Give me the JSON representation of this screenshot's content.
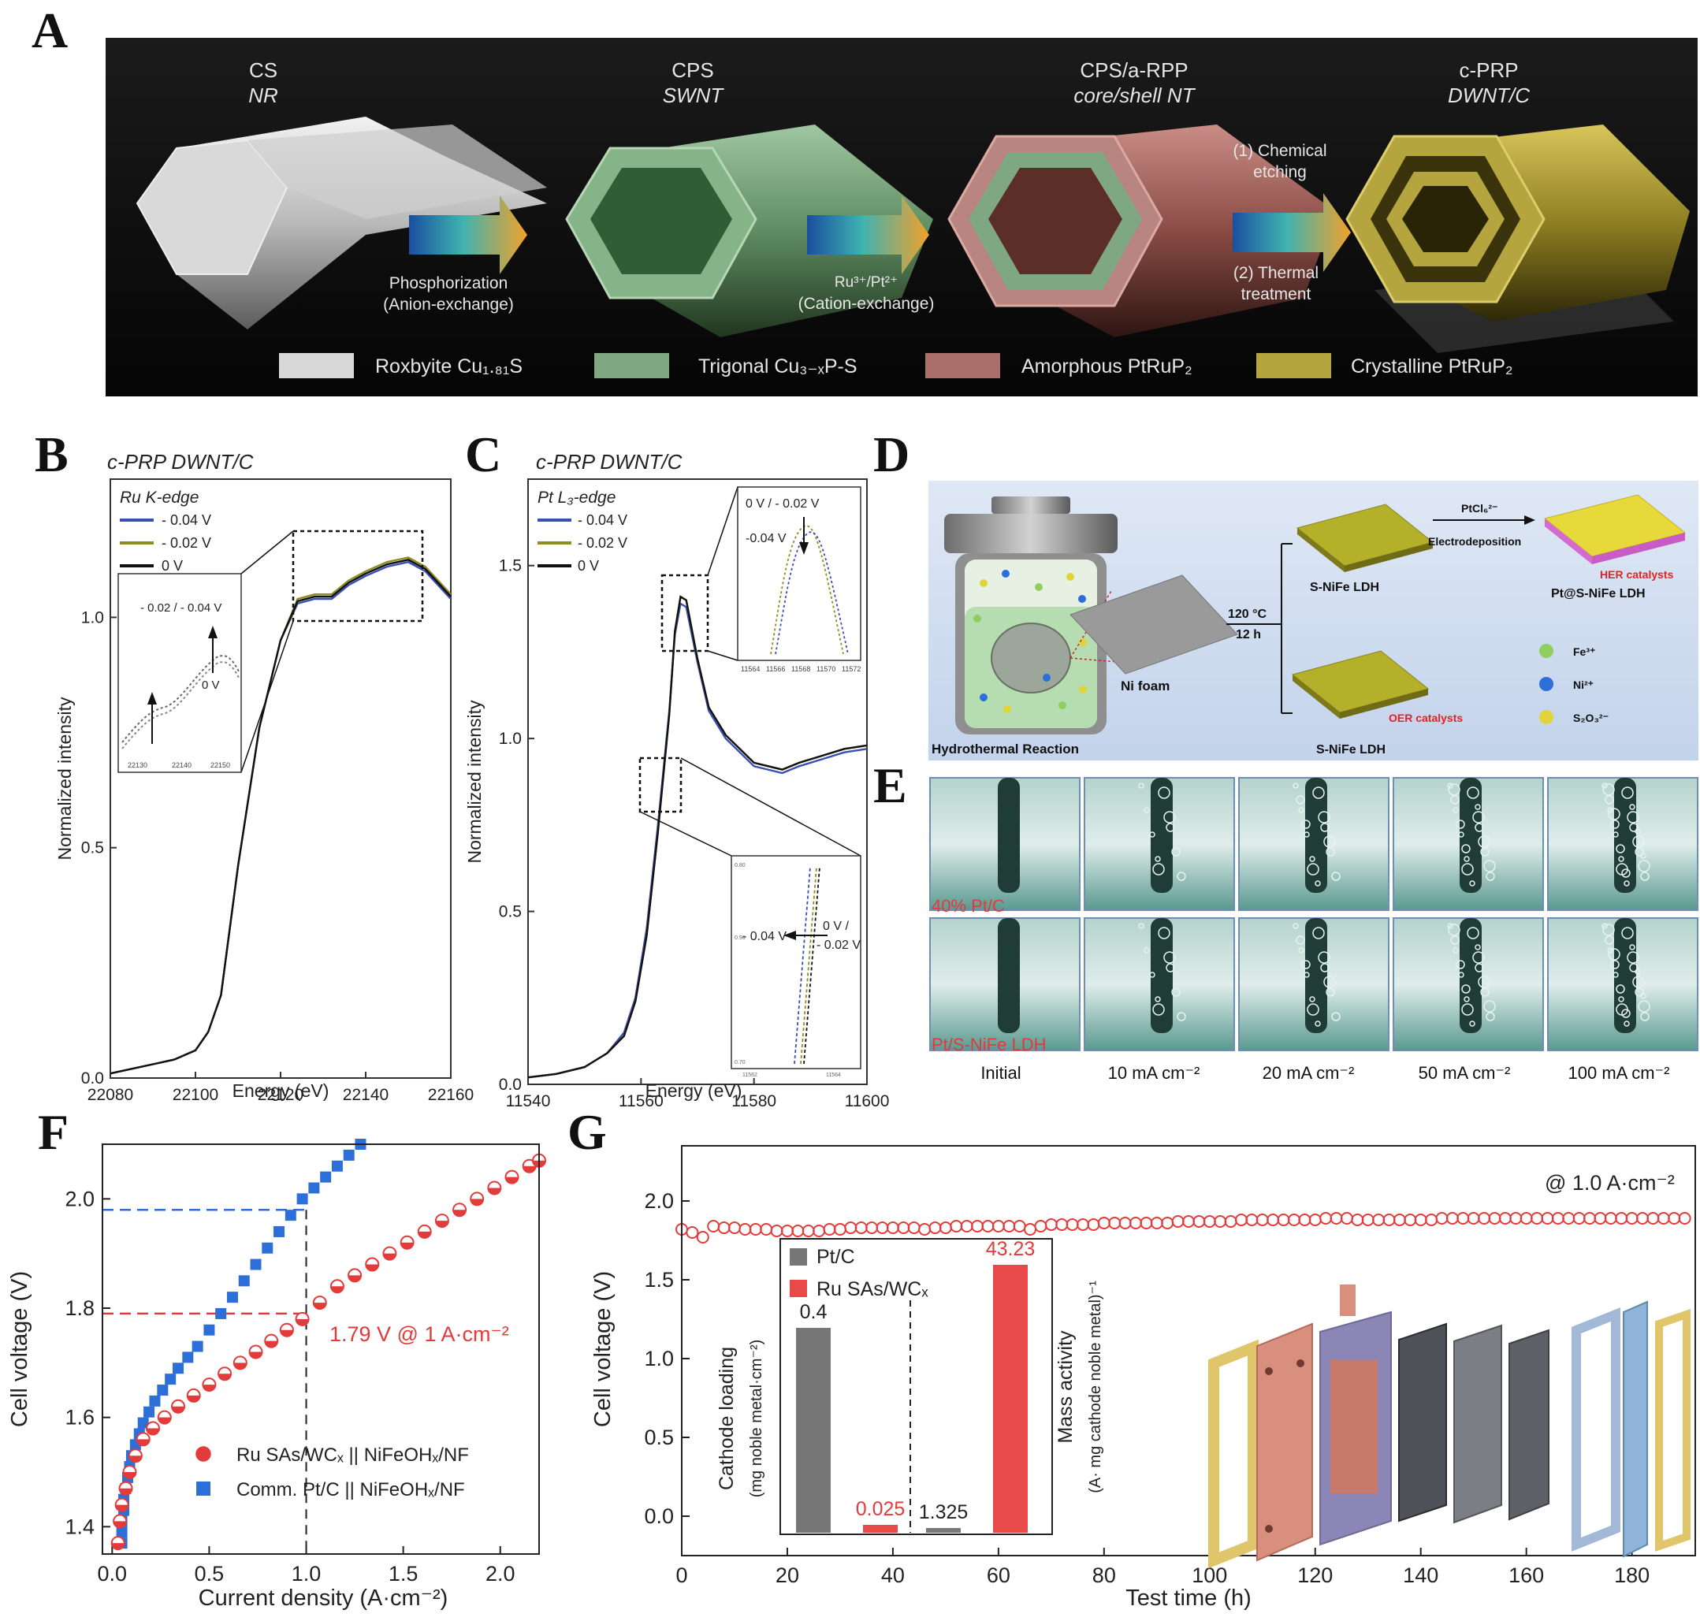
{
  "panel_labels": {
    "A": "A",
    "B": "B",
    "C": "C",
    "D": "D",
    "E": "E",
    "F": "F",
    "G": "G"
  },
  "colors": {
    "ru_red": "#e33a3a",
    "pt_blue": "#2d6fd8",
    "blue_line": "#3a4fb5",
    "olive_line": "#8d8d22",
    "black_line": "#111111",
    "dark_bg": "#0d0d0d",
    "schematic_bg": "#cfdcef",
    "bar_gray": "#777777",
    "bar_red": "#e84a4a"
  },
  "panel_a": {
    "stages": [
      {
        "formula": "CS",
        "form": "NR"
      },
      {
        "formula": "CPS",
        "form": "SWNT"
      },
      {
        "formula": "CPS/a-RPP",
        "form": "core/shell NT"
      },
      {
        "formula": "c-PRP",
        "form": "DWNT/C"
      }
    ],
    "arrow1": {
      "line1": "Phosphorization",
      "line2": "(Anion-exchange)"
    },
    "arrow2": {
      "line1": "Ru³⁺/Pt²⁺",
      "line2": "(Cation-exchange)"
    },
    "arrow3": {
      "top1": "(1) Chemical",
      "top2": "etching",
      "bottom1": "(2) Thermal",
      "bottom2": "treatment"
    },
    "legend": [
      "Roxbyite Cu₁.₈₁S",
      "Trigonal Cu₃₋ₓP-S",
      "Amorphous PtRuP₂",
      "Crystalline PtRuP₂"
    ],
    "legend_colors": [
      "#d8d8d8",
      "#7fa882",
      "#a9706b",
      "#b5a53e"
    ]
  },
  "panel_b": {
    "title": "c-PRP DWNT/C",
    "edge": "Ru K-edge",
    "inset_annotation": "- 0.02 / - 0.04 V",
    "inset_zero": "0 V",
    "inset_ticks": [
      "22130",
      "22140",
      "22150"
    ],
    "chart_data": {
      "type": "line",
      "xlabel": "Energy (eV)",
      "ylabel": "Normalized intensity",
      "xlim": [
        22080,
        22160
      ],
      "ylim": [
        0.0,
        1.3
      ],
      "xticks": [
        "22080",
        "22100",
        "22120",
        "22140",
        "22160"
      ],
      "yticks": [
        "0.0",
        "0.5",
        "1.0"
      ],
      "series": [
        {
          "name": "- 0.04 V",
          "color": "#3a4fb5",
          "x": [
            22080,
            22090,
            22095,
            22100,
            22103,
            22106,
            22110,
            22115,
            22120,
            22124,
            22128,
            22132,
            22136,
            22140,
            22145,
            22150,
            22154,
            22157,
            22160
          ],
          "y": [
            0.01,
            0.03,
            0.04,
            0.06,
            0.1,
            0.18,
            0.46,
            0.76,
            0.95,
            1.03,
            1.04,
            1.04,
            1.07,
            1.09,
            1.11,
            1.12,
            1.1,
            1.07,
            1.04
          ]
        },
        {
          "name": "- 0.02 V",
          "color": "#8d8d22",
          "x": [
            22080,
            22090,
            22095,
            22100,
            22103,
            22106,
            22110,
            22115,
            22120,
            22124,
            22128,
            22132,
            22136,
            22140,
            22145,
            22150,
            22154,
            22157,
            22160
          ],
          "y": [
            0.01,
            0.03,
            0.04,
            0.06,
            0.1,
            0.18,
            0.46,
            0.76,
            0.95,
            1.04,
            1.05,
            1.05,
            1.08,
            1.1,
            1.12,
            1.13,
            1.11,
            1.08,
            1.05
          ]
        },
        {
          "name": "0 V",
          "color": "#111111",
          "x": [
            22080,
            22090,
            22095,
            22100,
            22103,
            22106,
            22110,
            22115,
            22120,
            22124,
            22128,
            22132,
            22136,
            22140,
            22145,
            22150,
            22154,
            22157,
            22160
          ],
          "y": [
            0.01,
            0.03,
            0.04,
            0.06,
            0.1,
            0.18,
            0.46,
            0.76,
            0.95,
            1.035,
            1.045,
            1.045,
            1.075,
            1.095,
            1.115,
            1.125,
            1.105,
            1.075,
            1.045
          ]
        }
      ]
    }
  },
  "panel_c": {
    "title": "c-PRP DWNT/C",
    "edge": "Pt L₃-edge",
    "inset1_annotation_top": "0 V / - 0.02 V",
    "inset1_annotation": "-0.04 V",
    "inset1_ticks": [
      "11564",
      "11566",
      "11568",
      "11570",
      "11572"
    ],
    "inset2_left": "- 0.04 V",
    "inset2_right1": "0 V /",
    "inset2_right2": "- 0.02 V",
    "inset2_yticks": [
      "0.80",
      "0.90",
      "0.70"
    ],
    "inset2_xticks": [
      "11562",
      "11564"
    ],
    "chart_data": {
      "type": "line",
      "xlabel": "Energy (eV)",
      "ylabel": "Normalized intensity",
      "xlim": [
        11540,
        11600
      ],
      "ylim": [
        0.0,
        1.75
      ],
      "xticks": [
        "11540",
        "11560",
        "11580",
        "11600"
      ],
      "yticks": [
        "0.0",
        "0.5",
        "1.0",
        "1.5"
      ],
      "series": [
        {
          "name": "- 0.04 V",
          "color": "#3a4fb5",
          "x": [
            11540,
            11545,
            11550,
            11554,
            11557,
            11559,
            11561,
            11563,
            11565,
            11566,
            11567,
            11568,
            11570,
            11572,
            11575,
            11580,
            11585,
            11588,
            11592,
            11596,
            11600
          ],
          "y": [
            0.02,
            0.03,
            0.05,
            0.09,
            0.15,
            0.25,
            0.45,
            0.75,
            1.08,
            1.3,
            1.39,
            1.38,
            1.22,
            1.08,
            1.0,
            0.92,
            0.9,
            0.92,
            0.94,
            0.96,
            0.97
          ]
        },
        {
          "name": "- 0.02 V",
          "color": "#8d8d22",
          "x": [
            11540,
            11545,
            11550,
            11554,
            11557,
            11559,
            11561,
            11563,
            11565,
            11566,
            11567,
            11568,
            11570,
            11572,
            11575,
            11580,
            11585,
            11588,
            11592,
            11596,
            11600
          ],
          "y": [
            0.02,
            0.03,
            0.05,
            0.09,
            0.14,
            0.24,
            0.43,
            0.73,
            1.07,
            1.31,
            1.41,
            1.4,
            1.23,
            1.09,
            1.01,
            0.93,
            0.91,
            0.93,
            0.95,
            0.97,
            0.98
          ]
        },
        {
          "name": "0 V",
          "color": "#111111",
          "x": [
            11540,
            11545,
            11550,
            11554,
            11557,
            11559,
            11561,
            11563,
            11565,
            11566,
            11567,
            11568,
            11570,
            11572,
            11575,
            11580,
            11585,
            11588,
            11592,
            11596,
            11600
          ],
          "y": [
            0.02,
            0.03,
            0.05,
            0.09,
            0.14,
            0.24,
            0.43,
            0.73,
            1.07,
            1.31,
            1.41,
            1.4,
            1.23,
            1.09,
            1.01,
            0.93,
            0.91,
            0.93,
            0.95,
            0.97,
            0.98
          ]
        }
      ]
    }
  },
  "panel_d": {
    "reactor": "Hydrothermal Reaction",
    "foam": "Ni foam",
    "cond1": "120 °C",
    "cond2": "12 h",
    "top_ldh": "S-NiFe LDH",
    "bottom_ldh": "S-NiFe LDH",
    "oer": "OER catalysts",
    "her": "HER catalysts",
    "pt_product": "Pt@S-NiFe LDH",
    "ptcl": "PtCl₆²⁻",
    "electro": "Electrodeposition",
    "ions": [
      "Fe³⁺",
      "Ni²⁺",
      "S₂O₃²⁻"
    ]
  },
  "panel_e": {
    "row_labels": [
      "40% Pt/C",
      "Pt/S-NiFe LDH"
    ],
    "columns": [
      "Initial",
      "10 mA cm⁻²",
      "20 mA cm⁻²",
      "50 mA cm⁻²",
      "100 mA cm⁻²"
    ]
  },
  "panel_f": {
    "annotation": "1.79 V @ 1 A·cm⁻²",
    "chart_data": {
      "type": "scatter",
      "xlabel": "Current density (A·cm⁻²)",
      "ylabel": "Cell voltage (V)",
      "xlim": [
        -0.05,
        2.2
      ],
      "ylim": [
        1.35,
        2.1
      ],
      "xticks": [
        "0.0",
        "0.5",
        "1.0",
        "1.5",
        "2.0"
      ],
      "yticks": [
        "1.4",
        "1.6",
        "1.8",
        "2.0"
      ],
      "series": [
        {
          "name": "Ru SAs/WCₓ || NiFeOHₓ/NF",
          "color": "#e33a3a",
          "x": [
            0.03,
            0.04,
            0.05,
            0.07,
            0.09,
            0.12,
            0.16,
            0.21,
            0.27,
            0.34,
            0.42,
            0.5,
            0.58,
            0.66,
            0.74,
            0.82,
            0.9,
            0.98,
            1.07,
            1.16,
            1.25,
            1.34,
            1.43,
            1.52,
            1.61,
            1.7,
            1.79,
            1.88,
            1.97,
            2.06,
            2.15,
            2.2
          ],
          "y": [
            1.37,
            1.41,
            1.44,
            1.47,
            1.5,
            1.53,
            1.56,
            1.58,
            1.6,
            1.62,
            1.64,
            1.66,
            1.68,
            1.7,
            1.72,
            1.74,
            1.76,
            1.78,
            1.81,
            1.84,
            1.86,
            1.88,
            1.9,
            1.92,
            1.94,
            1.96,
            1.98,
            2.0,
            2.02,
            2.04,
            2.06,
            2.07
          ]
        },
        {
          "name": "Comm. Pt/C || NiFeOHₓ/NF",
          "color": "#2d6fd8",
          "x": [
            0.05,
            0.05,
            0.05,
            0.06,
            0.06,
            0.07,
            0.08,
            0.09,
            0.1,
            0.12,
            0.14,
            0.16,
            0.19,
            0.22,
            0.26,
            0.3,
            0.34,
            0.39,
            0.44,
            0.5,
            0.56,
            0.62,
            0.68,
            0.74,
            0.8,
            0.86,
            0.92,
            0.98,
            1.04,
            1.1,
            1.16,
            1.22,
            1.28
          ],
          "y": [
            1.37,
            1.39,
            1.41,
            1.43,
            1.45,
            1.47,
            1.49,
            1.51,
            1.53,
            1.55,
            1.57,
            1.59,
            1.61,
            1.63,
            1.65,
            1.67,
            1.69,
            1.71,
            1.73,
            1.76,
            1.79,
            1.82,
            1.85,
            1.88,
            1.91,
            1.94,
            1.97,
            2.0,
            2.02,
            2.04,
            2.06,
            2.08,
            2.1
          ]
        }
      ]
    }
  },
  "panel_g": {
    "annotation": "@  1.0 A·cm⁻²",
    "chart_data": {
      "type": "scatter",
      "xlabel": "Test time (h)",
      "ylabel": "Cell voltage (V)",
      "xlim": [
        0,
        192
      ],
      "ylim": [
        -0.25,
        2.35
      ],
      "xticks": [
        "0",
        "20",
        "40",
        "60",
        "80",
        "100",
        "120",
        "140",
        "160",
        "180"
      ],
      "yticks": [
        "0.0",
        "0.5",
        "1.0",
        "1.5",
        "2.0"
      ],
      "series": [
        {
          "name": "voltage",
          "color": "#e33a3a",
          "x": [
            0,
            2,
            4,
            6,
            8,
            10,
            12,
            14,
            16,
            18,
            20,
            22,
            24,
            26,
            28,
            30,
            32,
            34,
            36,
            38,
            40,
            42,
            44,
            46,
            48,
            50,
            52,
            54,
            56,
            58,
            60,
            62,
            64,
            66,
            68,
            70,
            72,
            74,
            76,
            78,
            80,
            82,
            84,
            86,
            88,
            90,
            92,
            94,
            96,
            98,
            100,
            102,
            104,
            106,
            108,
            110,
            112,
            114,
            116,
            118,
            120,
            122,
            124,
            126,
            128,
            130,
            132,
            134,
            136,
            138,
            140,
            142,
            144,
            146,
            148,
            150,
            152,
            154,
            156,
            158,
            160,
            162,
            164,
            166,
            168,
            170,
            172,
            174,
            176,
            178,
            180,
            182,
            184,
            186,
            188,
            190
          ],
          "y": [
            1.82,
            1.8,
            1.77,
            1.84,
            1.83,
            1.83,
            1.82,
            1.82,
            1.82,
            1.81,
            1.81,
            1.81,
            1.81,
            1.81,
            1.82,
            1.82,
            1.83,
            1.83,
            1.83,
            1.83,
            1.83,
            1.83,
            1.83,
            1.82,
            1.83,
            1.83,
            1.84,
            1.84,
            1.84,
            1.84,
            1.84,
            1.84,
            1.84,
            1.82,
            1.84,
            1.85,
            1.85,
            1.85,
            1.85,
            1.85,
            1.86,
            1.86,
            1.86,
            1.86,
            1.86,
            1.86,
            1.86,
            1.87,
            1.87,
            1.87,
            1.87,
            1.87,
            1.87,
            1.88,
            1.88,
            1.88,
            1.88,
            1.88,
            1.88,
            1.88,
            1.88,
            1.89,
            1.89,
            1.89,
            1.88,
            1.88,
            1.88,
            1.88,
            1.88,
            1.88,
            1.88,
            1.88,
            1.89,
            1.89,
            1.89,
            1.89,
            1.89,
            1.89,
            1.89,
            1.89,
            1.89,
            1.89,
            1.89,
            1.89,
            1.89,
            1.89,
            1.89,
            1.89,
            1.89,
            1.89,
            1.89,
            1.89,
            1.89,
            1.89,
            1.89,
            1.89
          ]
        }
      ]
    },
    "inset": {
      "legend": [
        "Pt/C",
        "Ru SAs/WCₓ"
      ],
      "left_ylabel": "Cathode loading",
      "left_ylabel2": "(mg noble metal·cm⁻²)",
      "right_ylabel": "Mass activity",
      "right_ylabel2": "(A· mg cathode noble metal)⁻¹",
      "chart_data": {
        "type": "bar",
        "categories": [
          "Cathode loading",
          "Mass activity"
        ],
        "series": [
          {
            "name": "Pt/C",
            "values": [
              0.4,
              1.325
            ],
            "labels": [
              "0.4",
              "1.325"
            ]
          },
          {
            "name": "Ru SAs/WCₓ",
            "values": [
              0.025,
              43.23
            ],
            "labels": [
              "0.025",
              "43.23"
            ]
          }
        ]
      }
    }
  }
}
